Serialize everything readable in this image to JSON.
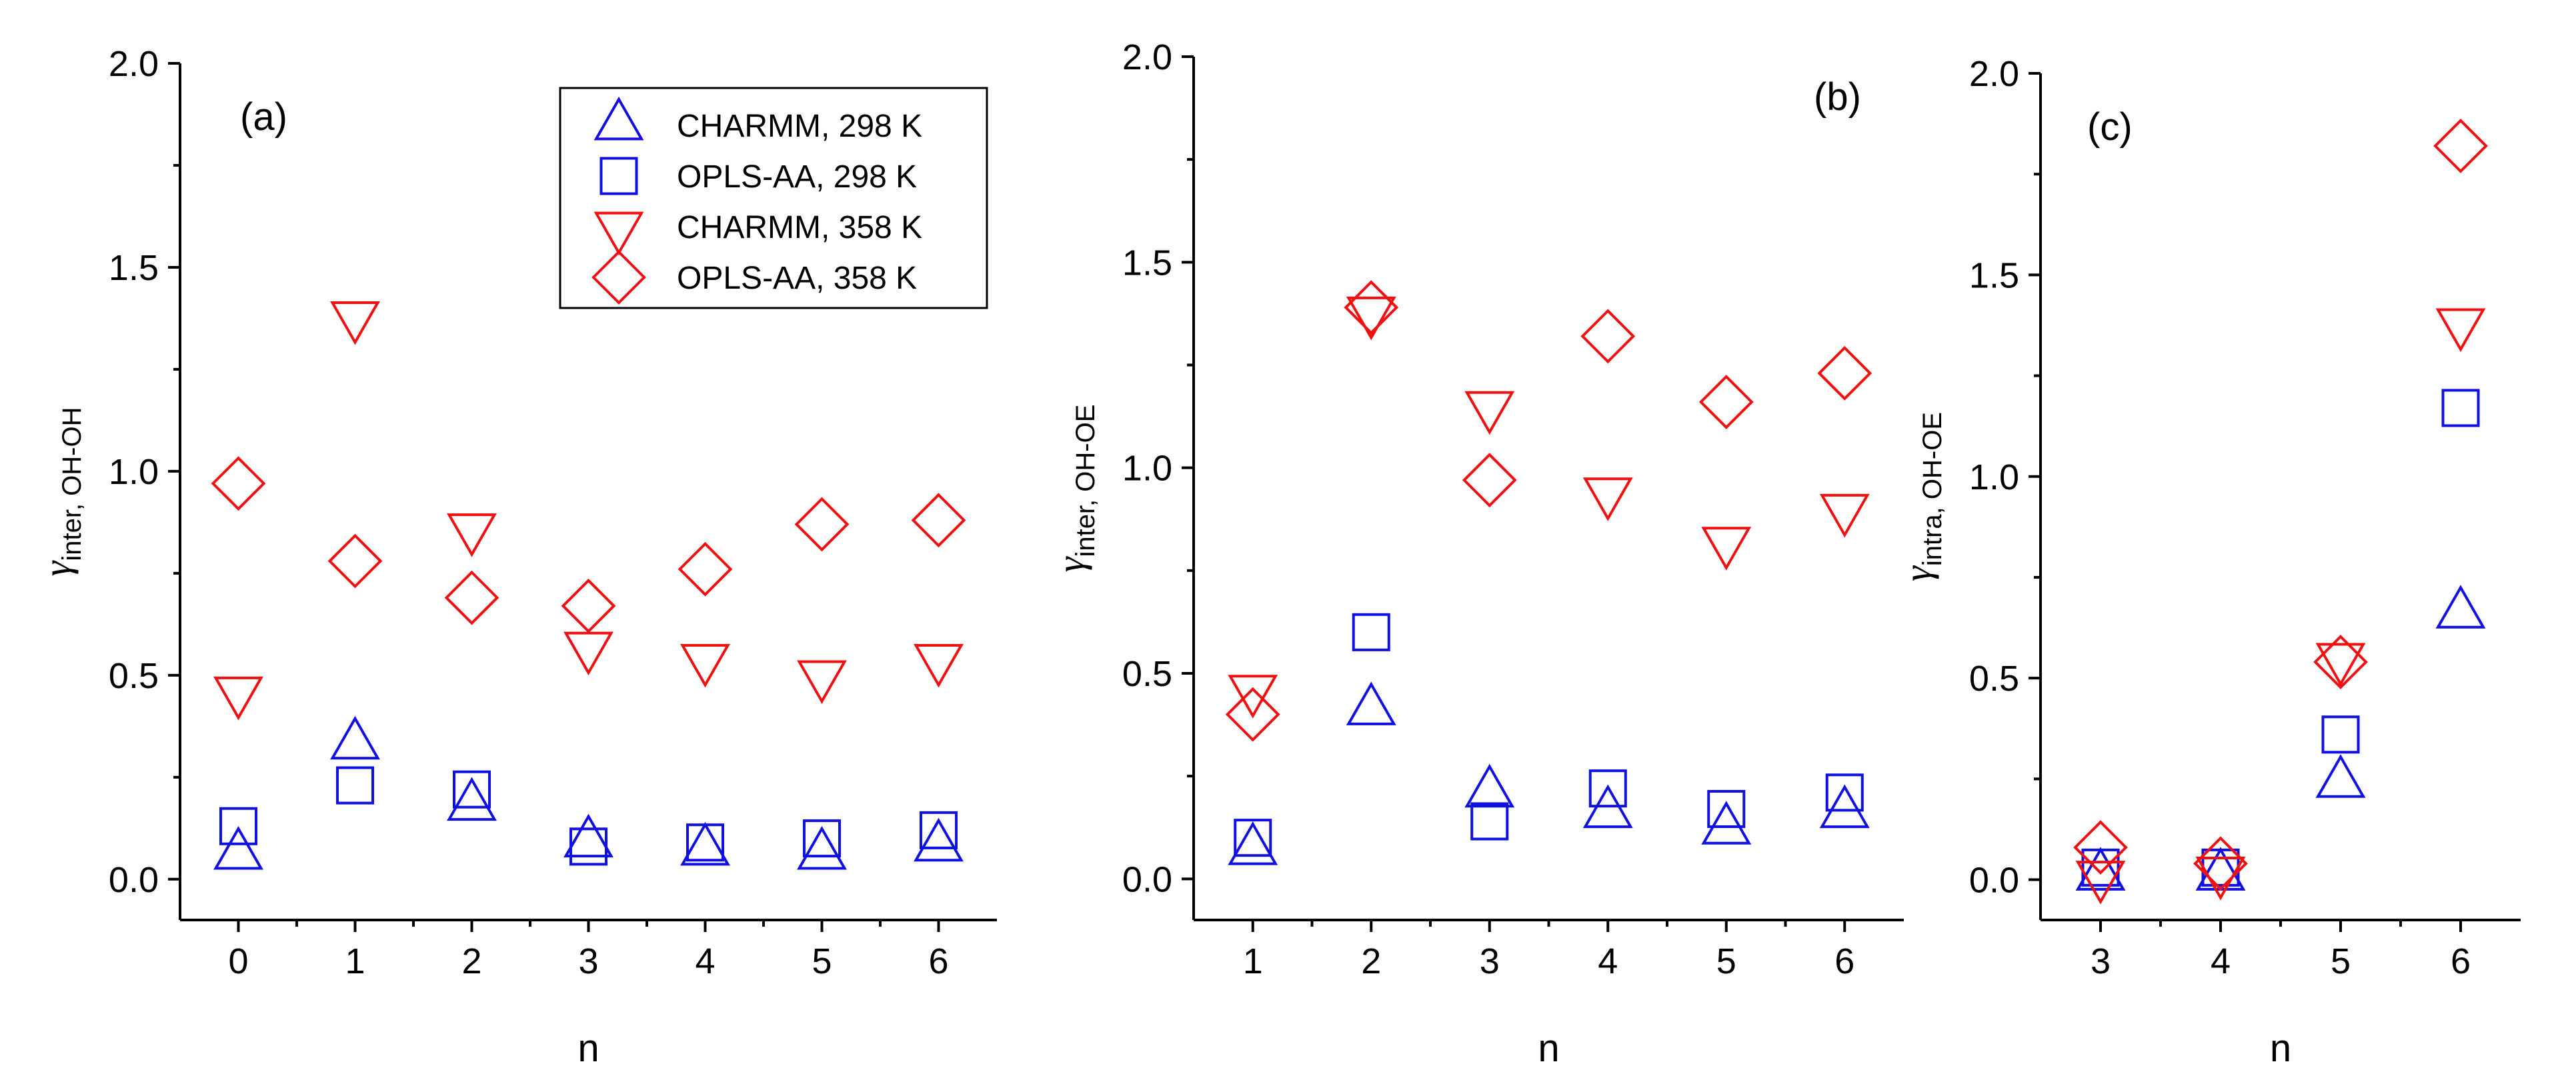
{
  "colors": {
    "blue": "#1010e0",
    "red": "#ee1111",
    "axis": "#000000"
  },
  "legend": [
    {
      "label": "CHARMM, 298 K",
      "marker": "triangle-up-icon",
      "color": "blue"
    },
    {
      "label": "OPLS-AA, 298 K",
      "marker": "square-icon",
      "color": "blue"
    },
    {
      "label": "CHARMM, 358 K",
      "marker": "triangle-down-icon",
      "color": "red"
    },
    {
      "label": "OPLS-AA, 358 K",
      "marker": "diamond-icon",
      "color": "red"
    }
  ],
  "chart_data": [
    {
      "type": "scatter",
      "panel_label": "(a)",
      "xlabel": "n",
      "ylabel": "γ",
      "ylabel_sub": "inter, OH-OH",
      "x": [
        0,
        1,
        2,
        3,
        4,
        5,
        6
      ],
      "xticks": [
        "0",
        "1",
        "2",
        "3",
        "4",
        "5",
        "6"
      ],
      "xlim": [
        -0.5,
        6.5
      ],
      "ylim": [
        -0.1,
        2.0
      ],
      "yticks": [
        "0.0",
        "0.5",
        "1.0",
        "1.5",
        "2.0"
      ],
      "legend_position": "top-right",
      "series": [
        {
          "name": "CHARMM, 298 K",
          "values": [
            0.06,
            0.33,
            0.18,
            0.09,
            0.07,
            0.06,
            0.08
          ]
        },
        {
          "name": "OPLS-AA, 298 K",
          "values": [
            0.13,
            0.23,
            0.22,
            0.08,
            0.09,
            0.1,
            0.12
          ]
        },
        {
          "name": "CHARMM, 358 K",
          "values": [
            0.46,
            1.38,
            0.86,
            0.57,
            0.54,
            0.5,
            0.54
          ]
        },
        {
          "name": "OPLS-AA, 358 K",
          "values": [
            0.97,
            0.78,
            0.69,
            0.67,
            0.76,
            0.87,
            0.88
          ]
        }
      ]
    },
    {
      "type": "scatter",
      "panel_label": "(b)",
      "xlabel": "n",
      "ylabel": "γ",
      "ylabel_sub": "inter, OH-OE",
      "x": [
        1,
        2,
        3,
        4,
        5,
        6
      ],
      "xticks": [
        "1",
        "2",
        "3",
        "4",
        "5",
        "6"
      ],
      "xlim": [
        0.5,
        6.5
      ],
      "ylim": [
        -0.1,
        2.0
      ],
      "yticks": [
        "0.0",
        "0.5",
        "1.0",
        "1.5",
        "2.0"
      ],
      "series": [
        {
          "name": "CHARMM, 298 K",
          "values": [
            0.07,
            0.41,
            0.21,
            0.16,
            0.12,
            0.16
          ]
        },
        {
          "name": "OPLS-AA, 298 K",
          "values": [
            0.1,
            0.6,
            0.14,
            0.22,
            0.17,
            0.21
          ]
        },
        {
          "name": "CHARMM, 358 K",
          "values": [
            0.46,
            1.38,
            1.15,
            0.94,
            0.82,
            0.9
          ]
        },
        {
          "name": "OPLS-AA, 358 K",
          "values": [
            0.4,
            1.39,
            0.97,
            1.32,
            1.16,
            1.23
          ]
        }
      ]
    },
    {
      "type": "scatter",
      "panel_label": "(c)",
      "xlabel": "n",
      "ylabel": "γ",
      "ylabel_sub": "intra, OH-OE",
      "x": [
        3,
        4,
        5,
        6
      ],
      "xticks": [
        "3",
        "4",
        "5",
        "6"
      ],
      "xlim": [
        2.5,
        6.5
      ],
      "ylim": [
        -0.1,
        2.0
      ],
      "yticks": [
        "0.0",
        "0.5",
        "1.0",
        "1.5",
        "2.0"
      ],
      "series": [
        {
          "name": "CHARMM, 298 K",
          "values": [
            0.01,
            0.01,
            0.24,
            0.66
          ]
        },
        {
          "name": "OPLS-AA, 298 K",
          "values": [
            0.03,
            0.03,
            0.36,
            1.17
          ]
        },
        {
          "name": "CHARMM, 358 K",
          "values": [
            0.01,
            0.02,
            0.55,
            1.38
          ]
        },
        {
          "name": "OPLS-AA, 358 K",
          "values": [
            0.08,
            0.04,
            0.54,
            1.82
          ]
        }
      ]
    }
  ]
}
